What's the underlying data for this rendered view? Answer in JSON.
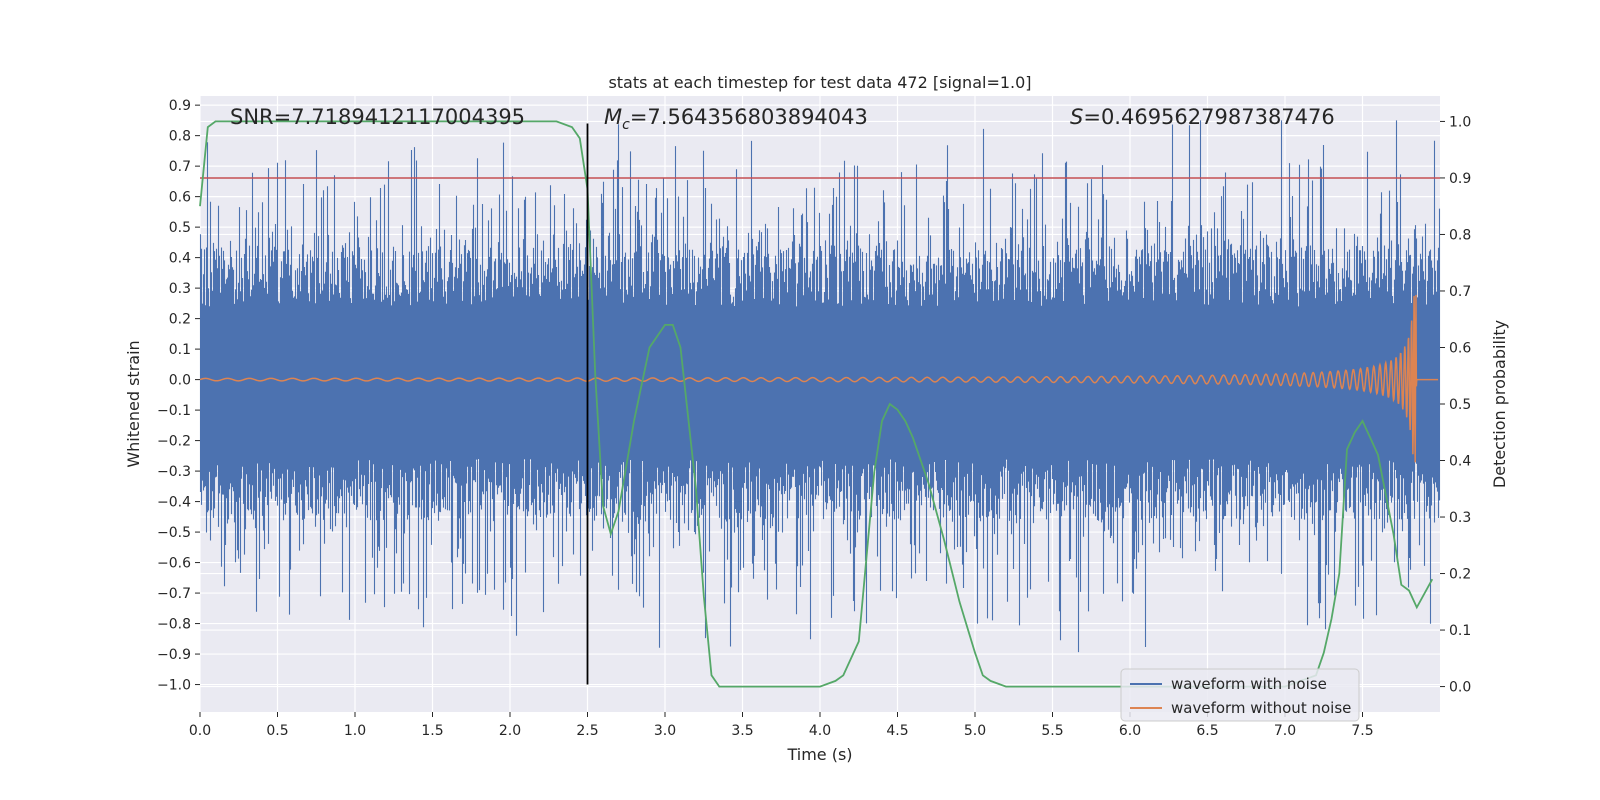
{
  "chart_data": {
    "type": "line",
    "title": "stats at each timestep for test data 472 [signal=1.0]",
    "xlabel": "Time (s)",
    "ylabel_left": "Whitened strain",
    "ylabel_right": "Detection probability",
    "xlim": [
      0.0,
      8.0
    ],
    "ylim_left": [
      -1.09,
      0.93
    ],
    "ylim_right": [
      -0.045,
      1.045
    ],
    "x_ticks": [
      "0.0",
      "0.5",
      "1.0",
      "1.5",
      "2.0",
      "2.5",
      "3.0",
      "3.5",
      "4.0",
      "4.5",
      "5.0",
      "5.5",
      "6.0",
      "6.5",
      "7.0",
      "7.5"
    ],
    "y_ticks_left": [
      "0.9",
      "0.8",
      "0.7",
      "0.6",
      "0.5",
      "0.4",
      "0.3",
      "0.2",
      "0.1",
      "0.0",
      "−0.1",
      "−0.2",
      "−0.3",
      "−0.4",
      "−0.5",
      "−0.6",
      "−0.7",
      "−0.8",
      "−0.9",
      "−1.0"
    ],
    "y_ticks_right": [
      "1.0",
      "0.9",
      "0.8",
      "0.7",
      "0.6",
      "0.5",
      "0.4",
      "0.3",
      "0.2",
      "0.1",
      "0.0"
    ],
    "annotations": {
      "snr": "SNR=7.7189412117004395",
      "mc_symbol": "M",
      "mc_sub": "c",
      "mc_value": "=7.564356803894043",
      "s_symbol": "S",
      "s_value": "=0.4695627987387476"
    },
    "threshold_line": {
      "value_right_axis": 0.9,
      "color": "#c44e52"
    },
    "event_marker": {
      "x": 2.5,
      "color": "#000000"
    },
    "series": [
      {
        "name": "waveform with noise",
        "color": "#4c72b0",
        "description_values": "noise amplitude ~0.25 typical, spikes up to ~0.83 and down to ~-0.93"
      },
      {
        "name": "waveform without noise",
        "color": "#dd8452",
        "description_values": "chirp amplitude 0.01 at t=0 rising to ~0.28 at t=7.85, then 0"
      },
      {
        "name": "detection probability",
        "color": "#55a868",
        "axis": "right",
        "x": [
          0.0,
          0.05,
          0.1,
          0.2,
          0.4,
          1.0,
          2.0,
          2.3,
          2.4,
          2.45,
          2.5,
          2.55,
          2.6,
          2.65,
          2.7,
          2.8,
          2.9,
          3.0,
          3.05,
          3.1,
          3.2,
          3.25,
          3.3,
          3.35,
          3.5,
          3.8,
          4.0,
          4.1,
          4.15,
          4.25,
          4.35,
          4.4,
          4.45,
          4.5,
          4.55,
          4.6,
          4.7,
          4.8,
          4.9,
          5.0,
          5.05,
          5.1,
          5.2,
          5.5,
          6.0,
          7.0,
          7.2,
          7.25,
          7.3,
          7.35,
          7.4,
          7.45,
          7.5,
          7.55,
          7.6,
          7.7,
          7.75,
          7.8,
          7.85,
          7.95
        ],
        "values": [
          0.85,
          0.99,
          1.0,
          1.0,
          1.0,
          1.0,
          1.0,
          1.0,
          0.99,
          0.97,
          0.88,
          0.55,
          0.32,
          0.27,
          0.31,
          0.47,
          0.6,
          0.64,
          0.64,
          0.6,
          0.35,
          0.16,
          0.02,
          0.0,
          0.0,
          0.0,
          0.0,
          0.01,
          0.02,
          0.08,
          0.38,
          0.47,
          0.5,
          0.49,
          0.47,
          0.44,
          0.36,
          0.26,
          0.15,
          0.06,
          0.02,
          0.01,
          0.0,
          0.0,
          0.0,
          0.0,
          0.02,
          0.06,
          0.12,
          0.2,
          0.42,
          0.45,
          0.47,
          0.44,
          0.41,
          0.27,
          0.18,
          0.17,
          0.14,
          0.19
        ]
      }
    ],
    "legend": {
      "position": "lower-right",
      "entries": [
        "waveform with noise",
        "waveform without noise"
      ]
    }
  }
}
